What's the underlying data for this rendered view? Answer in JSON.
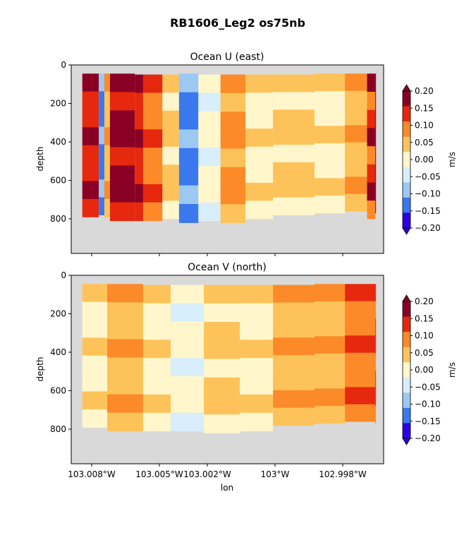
{
  "chart_data": [
    {
      "type": "contourf",
      "title": "Ocean U (east)",
      "ylabel": "depth",
      "xlabel": "",
      "x_ticks": [
        "103.008°W",
        "103.005°W",
        "103.002°W",
        "103°W",
        "102.998°W"
      ],
      "y_ticks": [
        "0",
        "200",
        "400",
        "600",
        "800"
      ],
      "ylim": [
        980,
        0
      ],
      "x_range_lon": [
        -103.0083,
        -102.997
      ],
      "colorbar": {
        "label": "m/s",
        "ticks": [
          "0.20",
          "0.15",
          "0.10",
          "0.05",
          "0.00",
          "−0.05",
          "−0.10",
          "−0.15",
          "−0.20"
        ],
        "levels": [
          -0.2,
          -0.15,
          -0.1,
          -0.05,
          0.0,
          0.05,
          0.1,
          0.15,
          0.2
        ],
        "colors": [
          "#2c00e6",
          "#3a78ee",
          "#9cc8f4",
          "#d8eefa",
          "#fff6cc",
          "#fdc35a",
          "#fc8a28",
          "#e6280e",
          "#8a0024"
        ],
        "extend": "both"
      },
      "missing_color": "#d9d9d9",
      "column_profiles": [
        {
          "lon": -103.0079,
          "bottom": 790,
          "top": 45,
          "u": 0.13
        },
        {
          "lon": -103.0073,
          "bottom": 780,
          "top": 45,
          "u": -0.18
        },
        {
          "lon": -103.0071,
          "bottom": 790,
          "top": 45,
          "u": 0.02
        },
        {
          "lon": -103.0069,
          "bottom": 810,
          "top": 45,
          "u": 0.16
        },
        {
          "lon": -103.006,
          "bottom": 810,
          "top": 50,
          "u": 0.14
        },
        {
          "lon": -103.0057,
          "bottom": 810,
          "top": 50,
          "u": 0.07
        },
        {
          "lon": -103.005,
          "bottom": 800,
          "top": 50,
          "u": 0.01
        },
        {
          "lon": -103.0044,
          "bottom": 820,
          "top": 45,
          "u": -0.16
        },
        {
          "lon": -103.0037,
          "bottom": 810,
          "top": 50,
          "u": -0.04
        },
        {
          "lon": -103.0029,
          "bottom": 820,
          "top": 50,
          "u": 0.05
        },
        {
          "lon": -103.002,
          "bottom": 800,
          "top": 50,
          "u": -0.03
        },
        {
          "lon": -103.001,
          "bottom": 780,
          "top": 50,
          "u": 0.01
        },
        {
          "lon": -102.9995,
          "bottom": 770,
          "top": 45,
          "u": -0.02
        },
        {
          "lon": -102.9984,
          "bottom": 760,
          "top": 45,
          "u": 0.02
        },
        {
          "lon": -102.9976,
          "bottom": 800,
          "top": 45,
          "u": 0.12
        },
        {
          "lon": -102.9973,
          "bottom": 770,
          "top": 45,
          "u": 0.17
        }
      ]
    },
    {
      "type": "contourf",
      "title": "Ocean V (north)",
      "ylabel": "depth",
      "xlabel": "lon",
      "x_ticks": [
        "103.008°W",
        "103.005°W",
        "103.002°W",
        "103°W",
        "102.998°W"
      ],
      "y_ticks": [
        "0",
        "200",
        "400",
        "600",
        "800"
      ],
      "ylim": [
        980,
        0
      ],
      "x_range_lon": [
        -103.0083,
        -102.997
      ],
      "colorbar": {
        "label": "m/s",
        "ticks": [
          "0.20",
          "0.15",
          "0.10",
          "0.05",
          "0.00",
          "−0.05",
          "−0.10",
          "−0.15",
          "−0.20"
        ],
        "levels": [
          -0.2,
          -0.15,
          -0.1,
          -0.05,
          0.0,
          0.05,
          0.1,
          0.15,
          0.2
        ],
        "colors": [
          "#2c00e6",
          "#3a78ee",
          "#9cc8f4",
          "#d8eefa",
          "#fff6cc",
          "#fdc35a",
          "#fc8a28",
          "#e6280e",
          "#8a0024"
        ],
        "extend": "both"
      },
      "missing_color": "#d9d9d9",
      "column_profiles": [
        {
          "lon": -103.0079,
          "bottom": 790,
          "top": 45,
          "v": -0.03
        },
        {
          "lon": -103.007,
          "bottom": 810,
          "top": 45,
          "v": 0.02
        },
        {
          "lon": -103.0057,
          "bottom": 810,
          "top": 50,
          "v": -0.02
        },
        {
          "lon": -103.0047,
          "bottom": 810,
          "top": 50,
          "v": -0.04
        },
        {
          "lon": -103.0035,
          "bottom": 820,
          "top": 50,
          "v": 0.01
        },
        {
          "lon": -103.0022,
          "bottom": 810,
          "top": 50,
          "v": -0.01
        },
        {
          "lon": -103.001,
          "bottom": 780,
          "top": 50,
          "v": 0.02
        },
        {
          "lon": -102.9995,
          "bottom": 770,
          "top": 45,
          "v": 0.03
        },
        {
          "lon": -102.9984,
          "bottom": 760,
          "top": 45,
          "v": 0.07
        },
        {
          "lon": -102.9973,
          "bottom": 770,
          "top": 45,
          "v": 0.11
        }
      ]
    }
  ],
  "figure": {
    "suptitle": "RB1606_Leg2 os75nb"
  }
}
